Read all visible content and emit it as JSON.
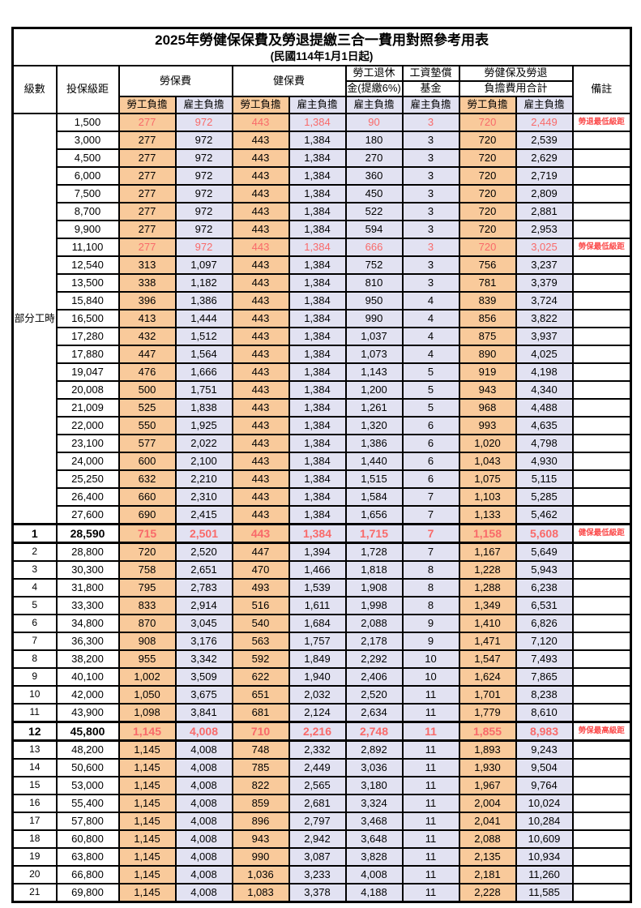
{
  "title": "2025年勞健保保費及勞退提繳三合一費用對照參考用表",
  "subtitle": "(民國114年1月1日起)",
  "colors": {
    "worker_fill": "#F9CA9B",
    "employer_fill": "#E2E2F2",
    "red_value": "#F96A6A",
    "remark_red": "#FB4B4B",
    "border": "#000000"
  },
  "header": {
    "level": "級數",
    "bracket": "投保級距",
    "labor_fee": "勞保費",
    "health_fee": "健保費",
    "pension_line1": "勞工退休",
    "pension_line2": "金(提繳6%)",
    "wage_fund_line1": "工資墊償",
    "wage_fund_line2": "基金",
    "total_line1": "勞健保及勞退",
    "total_line2": "負擔費用合計",
    "remark": "備註",
    "worker": "勞工負擔",
    "employer": "雇主負擔"
  },
  "part_time_label": "部分工時",
  "part_time_rowspan": 23,
  "col_fill_pattern": [
    "w",
    "e",
    "w",
    "e",
    "e",
    "e",
    "w",
    "e"
  ],
  "rows": [
    {
      "lv": "",
      "b": "1,500",
      "v": [
        "277",
        "972",
        "443",
        "1,384",
        "90",
        "3",
        "720",
        "2,449"
      ],
      "r": "勞退最低級距",
      "s": "red"
    },
    {
      "lv": "",
      "b": "3,000",
      "v": [
        "277",
        "972",
        "443",
        "1,384",
        "180",
        "3",
        "720",
        "2,539"
      ],
      "r": "",
      "s": ""
    },
    {
      "lv": "",
      "b": "4,500",
      "v": [
        "277",
        "972",
        "443",
        "1,384",
        "270",
        "3",
        "720",
        "2,629"
      ],
      "r": "",
      "s": ""
    },
    {
      "lv": "",
      "b": "6,000",
      "v": [
        "277",
        "972",
        "443",
        "1,384",
        "360",
        "3",
        "720",
        "2,719"
      ],
      "r": "",
      "s": ""
    },
    {
      "lv": "",
      "b": "7,500",
      "v": [
        "277",
        "972",
        "443",
        "1,384",
        "450",
        "3",
        "720",
        "2,809"
      ],
      "r": "",
      "s": ""
    },
    {
      "lv": "",
      "b": "8,700",
      "v": [
        "277",
        "972",
        "443",
        "1,384",
        "522",
        "3",
        "720",
        "2,881"
      ],
      "r": "",
      "s": ""
    },
    {
      "lv": "",
      "b": "9,900",
      "v": [
        "277",
        "972",
        "443",
        "1,384",
        "594",
        "3",
        "720",
        "2,953"
      ],
      "r": "",
      "s": ""
    },
    {
      "lv": "",
      "b": "11,100",
      "v": [
        "277",
        "972",
        "443",
        "1,384",
        "666",
        "3",
        "720",
        "3,025"
      ],
      "r": "勞保最低級距",
      "s": "red"
    },
    {
      "lv": "",
      "b": "12,540",
      "v": [
        "313",
        "1,097",
        "443",
        "1,384",
        "752",
        "3",
        "756",
        "3,237"
      ],
      "r": "",
      "s": ""
    },
    {
      "lv": "",
      "b": "13,500",
      "v": [
        "338",
        "1,182",
        "443",
        "1,384",
        "810",
        "3",
        "781",
        "3,379"
      ],
      "r": "",
      "s": ""
    },
    {
      "lv": "",
      "b": "15,840",
      "v": [
        "396",
        "1,386",
        "443",
        "1,384",
        "950",
        "4",
        "839",
        "3,724"
      ],
      "r": "",
      "s": ""
    },
    {
      "lv": "",
      "b": "16,500",
      "v": [
        "413",
        "1,444",
        "443",
        "1,384",
        "990",
        "4",
        "856",
        "3,822"
      ],
      "r": "",
      "s": ""
    },
    {
      "lv": "",
      "b": "17,280",
      "v": [
        "432",
        "1,512",
        "443",
        "1,384",
        "1,037",
        "4",
        "875",
        "3,937"
      ],
      "r": "",
      "s": ""
    },
    {
      "lv": "",
      "b": "17,880",
      "v": [
        "447",
        "1,564",
        "443",
        "1,384",
        "1,073",
        "4",
        "890",
        "4,025"
      ],
      "r": "",
      "s": ""
    },
    {
      "lv": "",
      "b": "19,047",
      "v": [
        "476",
        "1,666",
        "443",
        "1,384",
        "1,143",
        "5",
        "919",
        "4,198"
      ],
      "r": "",
      "s": ""
    },
    {
      "lv": "",
      "b": "20,008",
      "v": [
        "500",
        "1,751",
        "443",
        "1,384",
        "1,200",
        "5",
        "943",
        "4,340"
      ],
      "r": "",
      "s": ""
    },
    {
      "lv": "",
      "b": "21,009",
      "v": [
        "525",
        "1,838",
        "443",
        "1,384",
        "1,261",
        "5",
        "968",
        "4,488"
      ],
      "r": "",
      "s": ""
    },
    {
      "lv": "",
      "b": "22,000",
      "v": [
        "550",
        "1,925",
        "443",
        "1,384",
        "1,320",
        "6",
        "993",
        "4,635"
      ],
      "r": "",
      "s": ""
    },
    {
      "lv": "",
      "b": "23,100",
      "v": [
        "577",
        "2,022",
        "443",
        "1,384",
        "1,386",
        "6",
        "1,020",
        "4,798"
      ],
      "r": "",
      "s": ""
    },
    {
      "lv": "",
      "b": "24,000",
      "v": [
        "600",
        "2,100",
        "443",
        "1,384",
        "1,440",
        "6",
        "1,043",
        "4,930"
      ],
      "r": "",
      "s": ""
    },
    {
      "lv": "",
      "b": "25,250",
      "v": [
        "632",
        "2,210",
        "443",
        "1,384",
        "1,515",
        "6",
        "1,075",
        "5,115"
      ],
      "r": "",
      "s": ""
    },
    {
      "lv": "",
      "b": "26,400",
      "v": [
        "660",
        "2,310",
        "443",
        "1,384",
        "1,584",
        "7",
        "1,103",
        "5,285"
      ],
      "r": "",
      "s": ""
    },
    {
      "lv": "",
      "b": "27,600",
      "v": [
        "690",
        "2,415",
        "443",
        "1,384",
        "1,656",
        "7",
        "1,133",
        "5,462"
      ],
      "r": "",
      "s": ""
    },
    {
      "lv": "1",
      "b": "28,590",
      "v": [
        "715",
        "2,501",
        "443",
        "1,384",
        "1,715",
        "7",
        "1,158",
        "5,608"
      ],
      "r": "健保最低級距",
      "s": "redbold"
    },
    {
      "lv": "2",
      "b": "28,800",
      "v": [
        "720",
        "2,520",
        "447",
        "1,394",
        "1,728",
        "7",
        "1,167",
        "5,649"
      ],
      "r": "",
      "s": ""
    },
    {
      "lv": "3",
      "b": "30,300",
      "v": [
        "758",
        "2,651",
        "470",
        "1,466",
        "1,818",
        "8",
        "1,228",
        "5,943"
      ],
      "r": "",
      "s": ""
    },
    {
      "lv": "4",
      "b": "31,800",
      "v": [
        "795",
        "2,783",
        "493",
        "1,539",
        "1,908",
        "8",
        "1,288",
        "6,238"
      ],
      "r": "",
      "s": ""
    },
    {
      "lv": "5",
      "b": "33,300",
      "v": [
        "833",
        "2,914",
        "516",
        "1,611",
        "1,998",
        "8",
        "1,349",
        "6,531"
      ],
      "r": "",
      "s": ""
    },
    {
      "lv": "6",
      "b": "34,800",
      "v": [
        "870",
        "3,045",
        "540",
        "1,684",
        "2,088",
        "9",
        "1,410",
        "6,826"
      ],
      "r": "",
      "s": ""
    },
    {
      "lv": "7",
      "b": "36,300",
      "v": [
        "908",
        "3,176",
        "563",
        "1,757",
        "2,178",
        "9",
        "1,471",
        "7,120"
      ],
      "r": "",
      "s": ""
    },
    {
      "lv": "8",
      "b": "38,200",
      "v": [
        "955",
        "3,342",
        "592",
        "1,849",
        "2,292",
        "10",
        "1,547",
        "7,493"
      ],
      "r": "",
      "s": ""
    },
    {
      "lv": "9",
      "b": "40,100",
      "v": [
        "1,002",
        "3,509",
        "622",
        "1,940",
        "2,406",
        "10",
        "1,624",
        "7,865"
      ],
      "r": "",
      "s": ""
    },
    {
      "lv": "10",
      "b": "42,000",
      "v": [
        "1,050",
        "3,675",
        "651",
        "2,032",
        "2,520",
        "11",
        "1,701",
        "8,238"
      ],
      "r": "",
      "s": ""
    },
    {
      "lv": "11",
      "b": "43,900",
      "v": [
        "1,098",
        "3,841",
        "681",
        "2,124",
        "2,634",
        "11",
        "1,779",
        "8,610"
      ],
      "r": "",
      "s": ""
    },
    {
      "lv": "12",
      "b": "45,800",
      "v": [
        "1,145",
        "4,008",
        "710",
        "2,216",
        "2,748",
        "11",
        "1,855",
        "8,983"
      ],
      "r": "勞保最高級距",
      "s": "redbold"
    },
    {
      "lv": "13",
      "b": "48,200",
      "v": [
        "1,145",
        "4,008",
        "748",
        "2,332",
        "2,892",
        "11",
        "1,893",
        "9,243"
      ],
      "r": "",
      "s": ""
    },
    {
      "lv": "14",
      "b": "50,600",
      "v": [
        "1,145",
        "4,008",
        "785",
        "2,449",
        "3,036",
        "11",
        "1,930",
        "9,504"
      ],
      "r": "",
      "s": ""
    },
    {
      "lv": "15",
      "b": "53,000",
      "v": [
        "1,145",
        "4,008",
        "822",
        "2,565",
        "3,180",
        "11",
        "1,967",
        "9,764"
      ],
      "r": "",
      "s": ""
    },
    {
      "lv": "16",
      "b": "55,400",
      "v": [
        "1,145",
        "4,008",
        "859",
        "2,681",
        "3,324",
        "11",
        "2,004",
        "10,024"
      ],
      "r": "",
      "s": ""
    },
    {
      "lv": "17",
      "b": "57,800",
      "v": [
        "1,145",
        "4,008",
        "896",
        "2,797",
        "3,468",
        "11",
        "2,041",
        "10,284"
      ],
      "r": "",
      "s": ""
    },
    {
      "lv": "18",
      "b": "60,800",
      "v": [
        "1,145",
        "4,008",
        "943",
        "2,942",
        "3,648",
        "11",
        "2,088",
        "10,609"
      ],
      "r": "",
      "s": ""
    },
    {
      "lv": "19",
      "b": "63,800",
      "v": [
        "1,145",
        "4,008",
        "990",
        "3,087",
        "3,828",
        "11",
        "2,135",
        "10,934"
      ],
      "r": "",
      "s": ""
    },
    {
      "lv": "20",
      "b": "66,800",
      "v": [
        "1,145",
        "4,008",
        "1,036",
        "3,233",
        "4,008",
        "11",
        "2,181",
        "11,260"
      ],
      "r": "",
      "s": ""
    },
    {
      "lv": "21",
      "b": "69,800",
      "v": [
        "1,145",
        "4,008",
        "1,083",
        "3,378",
        "4,188",
        "11",
        "2,228",
        "11,585"
      ],
      "r": "",
      "s": ""
    }
  ]
}
